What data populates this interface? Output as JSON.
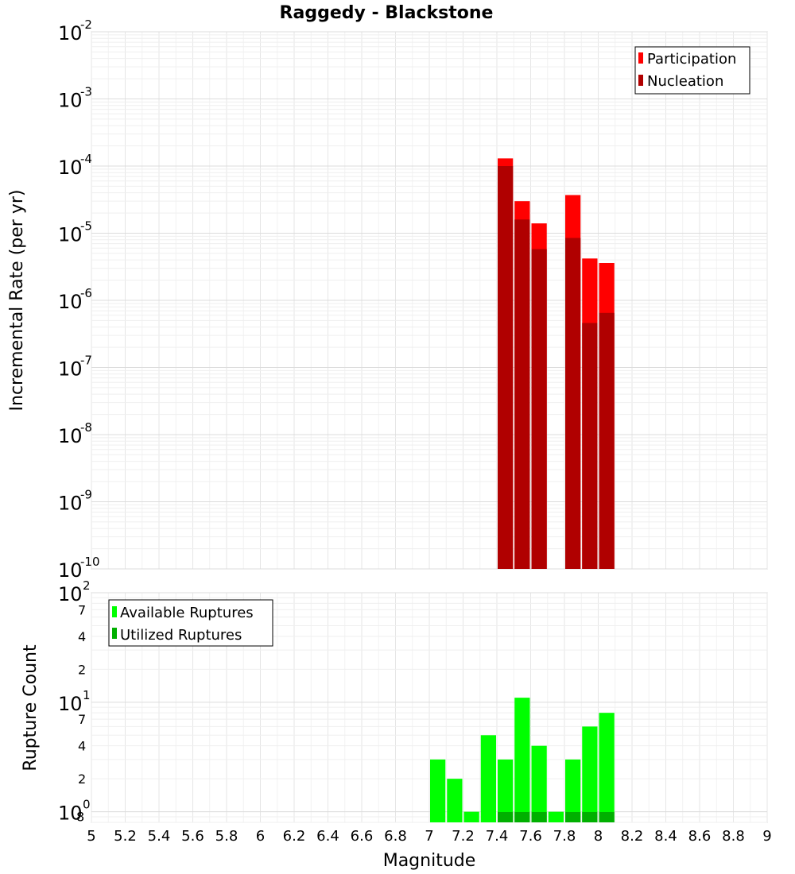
{
  "chart_data": {
    "title": "Raggedy - Blackstone",
    "xlabel": "Magnitude",
    "xlim": [
      5,
      9
    ],
    "x_ticks": [
      "5",
      "5.2",
      "5.4",
      "5.6",
      "5.8",
      "6",
      "6.2",
      "6.4",
      "6.6",
      "6.8",
      "7",
      "7.2",
      "7.4",
      "7.6",
      "7.8",
      "8",
      "8.2",
      "8.4",
      "8.6",
      "8.8",
      "9"
    ],
    "bin_width": 0.1,
    "panels": [
      {
        "id": "rate",
        "type": "bar",
        "scale": "log",
        "ylabel": "Incremental Rate (per yr)",
        "ylim": [
          1e-10,
          0.01
        ],
        "y_ticks": [
          {
            "base": "10",
            "exp": "-10"
          },
          {
            "base": "10",
            "exp": "-9"
          },
          {
            "base": "10",
            "exp": "-8"
          },
          {
            "base": "10",
            "exp": "-7"
          },
          {
            "base": "10",
            "exp": "-6"
          },
          {
            "base": "10",
            "exp": "-5"
          },
          {
            "base": "10",
            "exp": "-4"
          },
          {
            "base": "10",
            "exp": "-3"
          },
          {
            "base": "10",
            "exp": "-2"
          }
        ],
        "legend": {
          "position": "top-right",
          "entries": [
            "Participation",
            "Nucleation"
          ]
        },
        "series": [
          {
            "name": "Participation",
            "color": "#ff0000",
            "x": [
              7.45,
              7.55,
              7.65,
              7.85,
              7.95,
              8.05
            ],
            "values": [
              0.00013,
              3e-05,
              1.4e-05,
              3.7e-05,
              4.2e-06,
              3.6e-06
            ]
          },
          {
            "name": "Nucleation",
            "color": "#b00000",
            "x": [
              7.45,
              7.55,
              7.65,
              7.85,
              7.95,
              8.05
            ],
            "values": [
              0.0001,
              1.6e-05,
              5.8e-06,
              8.5e-06,
              4.6e-07,
              6.5e-07
            ]
          }
        ]
      },
      {
        "id": "count",
        "type": "bar",
        "scale": "log",
        "ylabel": "Rupture Count",
        "ylim": [
          0.8,
          100
        ],
        "y_ticks": [
          {
            "base": "10",
            "exp": "0",
            "suffix": "8"
          },
          {
            "base": "10",
            "exp": "1"
          },
          {
            "base": "10",
            "exp": "2"
          }
        ],
        "y_minor_labels": [
          "2",
          "4",
          "7",
          "2",
          "4",
          "7"
        ],
        "legend": {
          "position": "top-left",
          "entries": [
            "Available Ruptures",
            "Utilized Ruptures"
          ]
        },
        "series": [
          {
            "name": "Available Ruptures",
            "color": "#00ff00",
            "x": [
              7.05,
              7.15,
              7.25,
              7.35,
              7.45,
              7.55,
              7.65,
              7.75,
              7.85,
              7.95,
              8.05
            ],
            "values": [
              3,
              2,
              1,
              5,
              3,
              11,
              4,
              1,
              3,
              6,
              8
            ]
          },
          {
            "name": "Utilized Ruptures",
            "color": "#00b000",
            "x": [
              7.45,
              7.55,
              7.65,
              7.85,
              7.95,
              8.05
            ],
            "values": [
              1,
              1,
              1,
              1,
              1,
              1
            ]
          }
        ]
      }
    ]
  }
}
